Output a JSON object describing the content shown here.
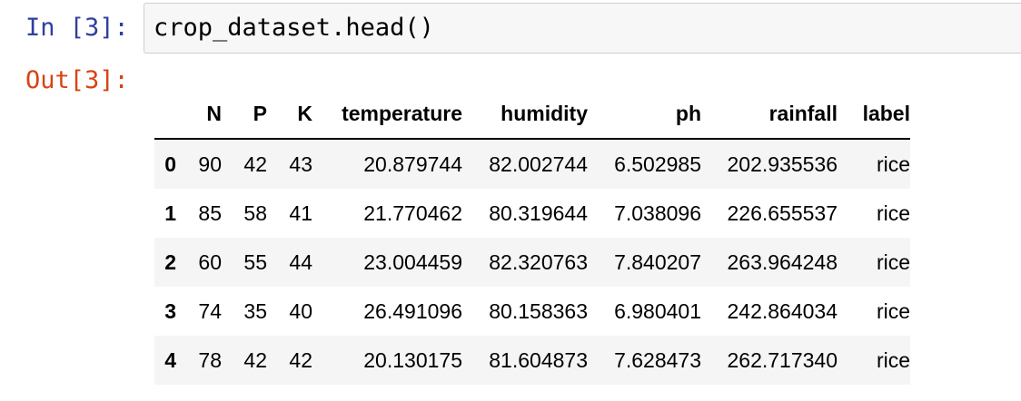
{
  "cell": {
    "in_prompt": "In [3]:",
    "code": "crop_dataset.head()",
    "out_prompt": "Out[3]:"
  },
  "table": {
    "columns": [
      "",
      "N",
      "P",
      "K",
      "temperature",
      "humidity",
      "ph",
      "rainfall",
      "label"
    ],
    "rows": [
      {
        "index": "0",
        "N": "90",
        "P": "42",
        "K": "43",
        "temperature": "20.879744",
        "humidity": "82.002744",
        "ph": "6.502985",
        "rainfall": "202.935536",
        "label": "rice"
      },
      {
        "index": "1",
        "N": "85",
        "P": "58",
        "K": "41",
        "temperature": "21.770462",
        "humidity": "80.319644",
        "ph": "7.038096",
        "rainfall": "226.655537",
        "label": "rice"
      },
      {
        "index": "2",
        "N": "60",
        "P": "55",
        "K": "44",
        "temperature": "23.004459",
        "humidity": "82.320763",
        "ph": "7.840207",
        "rainfall": "263.964248",
        "label": "rice"
      },
      {
        "index": "3",
        "N": "74",
        "P": "35",
        "K": "40",
        "temperature": "26.491096",
        "humidity": "80.158363",
        "ph": "6.980401",
        "rainfall": "242.864034",
        "label": "rice"
      },
      {
        "index": "4",
        "N": "78",
        "P": "42",
        "K": "42",
        "temperature": "20.130175",
        "humidity": "81.604873",
        "ph": "7.628473",
        "rainfall": "262.717340",
        "label": "rice"
      }
    ]
  }
}
